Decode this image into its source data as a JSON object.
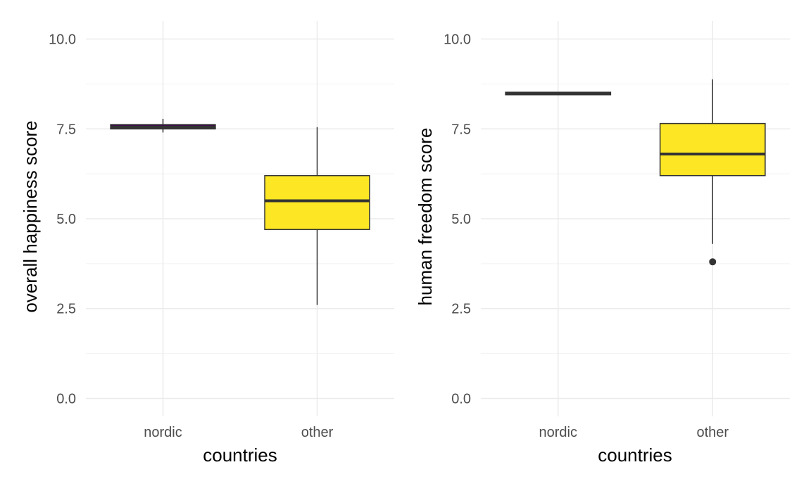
{
  "chart_data": [
    {
      "type": "boxplot",
      "xlabel": "countries",
      "ylabel": "overall happiness score",
      "categories": [
        "nordic",
        "other"
      ],
      "ylim": [
        -0.5,
        10.5
      ],
      "yticks": [
        0.0,
        2.5,
        5.0,
        7.5,
        10.0
      ],
      "ytick_labels": [
        "0.0",
        "2.5",
        "5.0",
        "7.5",
        "10.0"
      ],
      "grid": true,
      "legend": "none",
      "boxes": [
        {
          "category": "nordic",
          "min": 7.4,
          "q1": 7.5,
          "median": 7.55,
          "q3": 7.62,
          "max": 7.78,
          "outliers": [],
          "fill": "#440154"
        },
        {
          "category": "other",
          "min": 2.6,
          "q1": 4.7,
          "median": 5.5,
          "q3": 6.2,
          "max": 7.55,
          "outliers": [],
          "fill": "#fde725"
        }
      ]
    },
    {
      "type": "boxplot",
      "xlabel": "countries",
      "ylabel": "human freedom score",
      "categories": [
        "nordic",
        "other"
      ],
      "ylim": [
        -0.5,
        10.5
      ],
      "yticks": [
        0.0,
        2.5,
        5.0,
        7.5,
        10.0
      ],
      "ytick_labels": [
        "0.0",
        "2.5",
        "5.0",
        "7.5",
        "10.0"
      ],
      "grid": true,
      "legend": "none",
      "boxes": [
        {
          "category": "nordic",
          "min": 8.45,
          "q1": 8.45,
          "median": 8.48,
          "q3": 8.52,
          "max": 8.52,
          "outliers": [],
          "fill": "#440154"
        },
        {
          "category": "other",
          "min": 4.3,
          "q1": 6.2,
          "median": 6.8,
          "q3": 7.65,
          "max": 8.88,
          "outliers": [
            3.8
          ],
          "fill": "#fde725"
        }
      ]
    }
  ]
}
